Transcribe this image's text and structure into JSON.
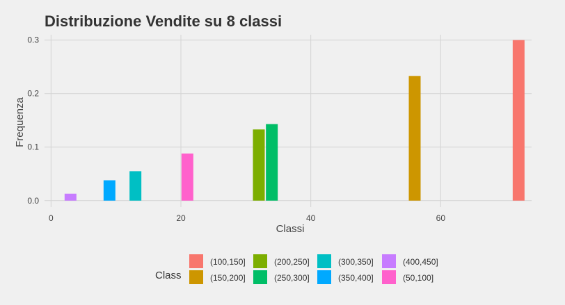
{
  "chart_data": {
    "type": "bar",
    "title": "Distribuzione Vendite su 8 classi",
    "xlabel": "Classi",
    "ylabel": "Frequenza",
    "xlim": [
      -1,
      74
    ],
    "ylim": [
      -0.012,
      0.31
    ],
    "x_ticks": [
      0,
      20,
      40,
      60
    ],
    "y_ticks": [
      0.0,
      0.1,
      0.2,
      0.3
    ],
    "y_tick_labels": [
      "0.0",
      "0.1",
      "0.2",
      "0.3"
    ],
    "grid": true,
    "legend": {
      "title": "Class",
      "placement": "bottom"
    },
    "series": [
      {
        "name": "(100,150]",
        "x": 72,
        "value": 0.3,
        "color": "#F8766D"
      },
      {
        "name": "(150,200]",
        "x": 56,
        "value": 0.233,
        "color": "#CD9600"
      },
      {
        "name": "(200,250]",
        "x": 32,
        "value": 0.133,
        "color": "#7CAE00"
      },
      {
        "name": "(250,300]",
        "x": 34,
        "value": 0.143,
        "color": "#00BE67"
      },
      {
        "name": "(300,350]",
        "x": 13,
        "value": 0.055,
        "color": "#00BFC4"
      },
      {
        "name": "(350,400]",
        "x": 9,
        "value": 0.038,
        "color": "#00A9FF"
      },
      {
        "name": "(400,450]",
        "x": 3,
        "value": 0.013,
        "color": "#C77CFF"
      },
      {
        "name": "(50,100]",
        "x": 21,
        "value": 0.088,
        "color": "#FF61CC"
      }
    ]
  }
}
